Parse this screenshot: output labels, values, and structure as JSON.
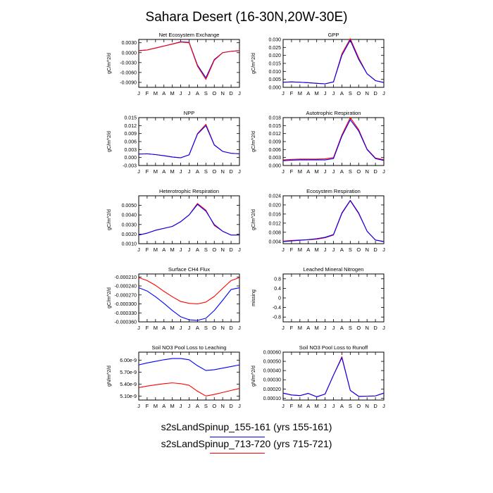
{
  "title": "Sahara Desert (16-30N,20W-30E)",
  "months": [
    "J",
    "F",
    "M",
    "A",
    "M",
    "J",
    "J",
    "A",
    "S",
    "O",
    "N",
    "D",
    "J"
  ],
  "legend": [
    {
      "label": "s2sLandSpinup_155-161 (yrs 155-161)",
      "color": "#0000ff"
    },
    {
      "label": "s2sLandSpinup_713-720 (yrs 715-721)",
      "color": "#ff0000"
    }
  ],
  "chart_data": [
    {
      "type": "line",
      "title": "Net Ecosystem Exchange",
      "ylabel": "gC/m^2/d",
      "ylim": [
        -0.0105,
        0.004
      ],
      "yticks": [
        -0.009,
        -0.006,
        -0.003,
        0.0,
        0.003
      ],
      "ytick_labels": [
        "-0.0090",
        "-0.0060",
        "-0.0030",
        "0.0000",
        "0.0030"
      ],
      "series": [
        {
          "color": "#0000ff",
          "values": [
            0.0006,
            0.0008,
            0.0014,
            0.002,
            0.0026,
            0.0033,
            0.0031,
            -0.0038,
            -0.0076,
            -0.0021,
            0.0,
            0.0004,
            0.0006
          ]
        },
        {
          "color": "#ff0000",
          "values": [
            0.0006,
            0.0008,
            0.0014,
            0.002,
            0.0026,
            0.0032,
            0.003,
            -0.0041,
            -0.0081,
            -0.0023,
            0.0,
            0.0004,
            0.0006
          ]
        }
      ]
    },
    {
      "type": "line",
      "title": "GPP",
      "ylabel": "gC/m^2/d",
      "ylim": [
        0.0,
        0.03
      ],
      "yticks": [
        0.0,
        0.005,
        0.01,
        0.015,
        0.02,
        0.025,
        0.03
      ],
      "ytick_labels": [
        "0.000",
        "0.005",
        "0.010",
        "0.015",
        "0.020",
        "0.025",
        "0.030"
      ],
      "series": [
        {
          "color": "#ff0000",
          "values": [
            0.0032,
            0.0034,
            0.0032,
            0.0029,
            0.0025,
            0.0022,
            0.0034,
            0.021,
            0.0305,
            0.0185,
            0.0085,
            0.0042,
            0.003
          ]
        },
        {
          "color": "#0000ff",
          "values": [
            0.0032,
            0.0034,
            0.0032,
            0.0029,
            0.0025,
            0.0022,
            0.0034,
            0.02,
            0.0295,
            0.0175,
            0.0085,
            0.0042,
            0.003
          ]
        }
      ]
    },
    {
      "type": "line",
      "title": "NPP",
      "ylabel": "gC/m^2/d",
      "ylim": [
        -0.003,
        0.015
      ],
      "yticks": [
        -0.003,
        0.0,
        0.003,
        0.006,
        0.009,
        0.012,
        0.015
      ],
      "ytick_labels": [
        "-0.003",
        "0.000",
        "0.003",
        "0.006",
        "0.009",
        "0.012",
        "0.015"
      ],
      "series": [
        {
          "color": "#ff0000",
          "values": [
            0.0013,
            0.0014,
            0.0011,
            0.0007,
            0.0002,
            -0.0001,
            0.001,
            0.009,
            0.0125,
            0.0048,
            0.0023,
            0.0016,
            0.0014
          ]
        },
        {
          "color": "#0000ff",
          "values": [
            0.0013,
            0.0014,
            0.0011,
            0.0007,
            0.0002,
            -0.0001,
            0.001,
            0.0088,
            0.012,
            0.0047,
            0.0023,
            0.0016,
            0.0014
          ]
        }
      ]
    },
    {
      "type": "line",
      "title": "Autotrophic Respiration",
      "ylabel": "gC/m^2/d",
      "ylim": [
        0.0,
        0.018
      ],
      "yticks": [
        0.0,
        0.003,
        0.006,
        0.009,
        0.012,
        0.015,
        0.018
      ],
      "ytick_labels": [
        "0.000",
        "0.003",
        "0.006",
        "0.009",
        "0.012",
        "0.015",
        "0.018"
      ],
      "series": [
        {
          "color": "#ff0000",
          "values": [
            0.0021,
            0.0023,
            0.0024,
            0.0024,
            0.0024,
            0.0025,
            0.003,
            0.0115,
            0.018,
            0.0135,
            0.0062,
            0.0028,
            0.0022
          ]
        },
        {
          "color": "#0000ff",
          "values": [
            0.0018,
            0.002,
            0.0021,
            0.0021,
            0.0021,
            0.0021,
            0.0026,
            0.011,
            0.0172,
            0.013,
            0.006,
            0.0026,
            0.0019
          ]
        }
      ]
    },
    {
      "type": "line",
      "title": "Heterotrophic Respiration",
      "ylabel": "gC/m^2/d",
      "ylim": [
        0.001,
        0.006
      ],
      "yticks": [
        0.001,
        0.002,
        0.003,
        0.004,
        0.005
      ],
      "ytick_labels": [
        "0.0010",
        "0.0020",
        "0.0030",
        "0.0040",
        "0.0050"
      ],
      "series": [
        {
          "color": "#ff0000",
          "values": [
            0.0019,
            0.0021,
            0.0024,
            0.0026,
            0.0028,
            0.0033,
            0.004,
            0.0052,
            0.0045,
            0.0029,
            0.0023,
            0.0019,
            0.0019
          ]
        },
        {
          "color": "#0000ff",
          "values": [
            0.0019,
            0.0021,
            0.0024,
            0.0026,
            0.0028,
            0.0033,
            0.004,
            0.0051,
            0.0044,
            0.003,
            0.0023,
            0.0019,
            0.0019
          ]
        }
      ]
    },
    {
      "type": "line",
      "title": "Ecosystem Respiration",
      "ylabel": "gC/m^2/d",
      "ylim": [
        0.003,
        0.024
      ],
      "yticks": [
        0.004,
        0.008,
        0.012,
        0.016,
        0.02,
        0.024
      ],
      "ytick_labels": [
        "0.004",
        "0.008",
        "0.012",
        "0.016",
        "0.020",
        "0.024"
      ],
      "series": [
        {
          "color": "#ff0000",
          "values": [
            0.0041,
            0.0044,
            0.0046,
            0.0047,
            0.005,
            0.0056,
            0.0068,
            0.0162,
            0.0218,
            0.0162,
            0.0085,
            0.0046,
            0.004
          ]
        },
        {
          "color": "#0000ff",
          "values": [
            0.0039,
            0.0042,
            0.0045,
            0.0048,
            0.0052,
            0.0058,
            0.007,
            0.0165,
            0.022,
            0.0165,
            0.0085,
            0.0046,
            0.0039
          ]
        }
      ]
    },
    {
      "type": "line",
      "title": "Surface CH4 Flux",
      "ylabel": "gC/m^2/d",
      "ylim": [
        -0.00036,
        -0.0002
      ],
      "yticks": [
        -0.00036,
        -0.00033,
        -0.0003,
        -0.00027,
        -0.00024,
        -0.00021
      ],
      "ytick_labels": [
        "-0.000360",
        "-0.000330",
        "-0.000300",
        "-0.000270",
        "-0.000240",
        "-0.000210"
      ],
      "series": [
        {
          "color": "#ff0000",
          "values": [
            -0.000212,
            -0.000222,
            -0.000238,
            -0.000258,
            -0.000276,
            -0.000292,
            -0.000298,
            -0.0003,
            -0.000294,
            -0.000275,
            -0.000248,
            -0.000222,
            -0.000212
          ]
        },
        {
          "color": "#0000ff",
          "values": [
            -0.000246,
            -0.000257,
            -0.000276,
            -0.000298,
            -0.000322,
            -0.000343,
            -0.000353,
            -0.000355,
            -0.000348,
            -0.000322,
            -0.000288,
            -0.000252,
            -0.000246
          ]
        }
      ]
    },
    {
      "type": "line",
      "title": "Leached Mineral Nitrogen",
      "ylabel": "missing",
      "ylim": [
        -1.0,
        1.0
      ],
      "yticks": [
        -0.8,
        -0.4,
        0.0,
        0.4,
        0.8
      ],
      "ytick_labels": [
        "-0.8",
        "-0.4",
        "0",
        "0.4",
        "0.8"
      ],
      "series": []
    },
    {
      "type": "line",
      "title": "Soil NO3 Pool Loss to Leaching",
      "ylabel": "gN/m^2/d",
      "ylim": [
        5e-09,
        6.2e-09
      ],
      "yticks": [
        5.1e-09,
        5.4e-09,
        5.7e-09,
        6e-09
      ],
      "ytick_labels": [
        "5.10e-9",
        "5.40e-9",
        "5.70e-9",
        "6.00e-9"
      ],
      "series": [
        {
          "color": "#0000ff",
          "values": [
            5.88e-09,
            5.93e-09,
            5.97e-09,
            6.01e-09,
            6.04e-09,
            6.04e-09,
            6.01e-09,
            5.86e-09,
            5.74e-09,
            5.76e-09,
            5.8e-09,
            5.84e-09,
            5.88e-09
          ]
        },
        {
          "color": "#ff0000",
          "values": [
            5.31e-09,
            5.35e-09,
            5.38e-09,
            5.41e-09,
            5.43e-09,
            5.41e-09,
            5.37e-09,
            5.22e-09,
            5.1e-09,
            5.14e-09,
            5.19e-09,
            5.24e-09,
            5.29e-09
          ]
        }
      ]
    },
    {
      "type": "line",
      "title": "Soil NO3 Pool Loss to Runoff",
      "ylabel": "gN/m^2/d",
      "ylim": [
        8e-05,
        0.0006
      ],
      "yticks": [
        0.0001,
        0.0002,
        0.0003,
        0.0004,
        0.0005,
        0.0006
      ],
      "ytick_labels": [
        "0.00010",
        "0.00020",
        "0.00030",
        "0.00040",
        "0.00050",
        "0.00060"
      ],
      "series": [
        {
          "color": "#ff0000",
          "values": [
            0.000155,
            0.000135,
            0.000128,
            0.000152,
            0.000115,
            0.000145,
            0.00035,
            0.00055,
            0.000185,
            0.00012,
            0.000122,
            0.000125,
            0.000155
          ]
        },
        {
          "color": "#0000ff",
          "values": [
            0.000155,
            0.000135,
            0.000128,
            0.000152,
            0.000115,
            0.000145,
            0.00035,
            0.00054,
            0.000185,
            0.00012,
            0.000122,
            0.000125,
            0.000155
          ]
        }
      ]
    }
  ]
}
